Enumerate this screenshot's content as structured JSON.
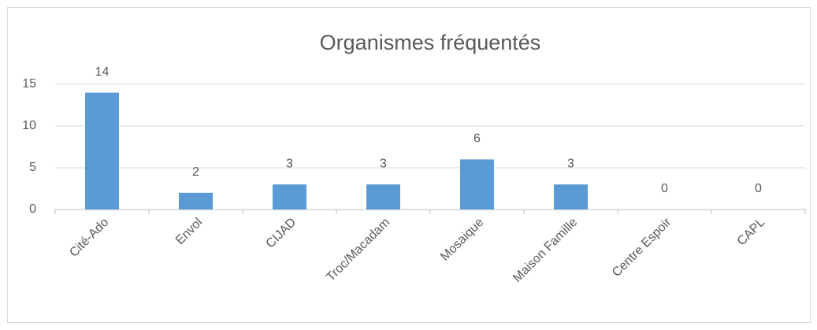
{
  "chart_data": {
    "type": "bar",
    "title": "Organismes fréquentés",
    "categories": [
      "Cité-Ado",
      "Envol",
      "CIJAD",
      "Troc/Macadam",
      "Mosaique",
      "Maison Famille",
      "Centre Espoir",
      "CAPL"
    ],
    "values": [
      14,
      2,
      3,
      3,
      6,
      3,
      0,
      0
    ],
    "color": "#5b9bd5",
    "ylim": [
      0,
      15
    ],
    "yticks": [
      0,
      5,
      10,
      15
    ],
    "grid": true
  }
}
